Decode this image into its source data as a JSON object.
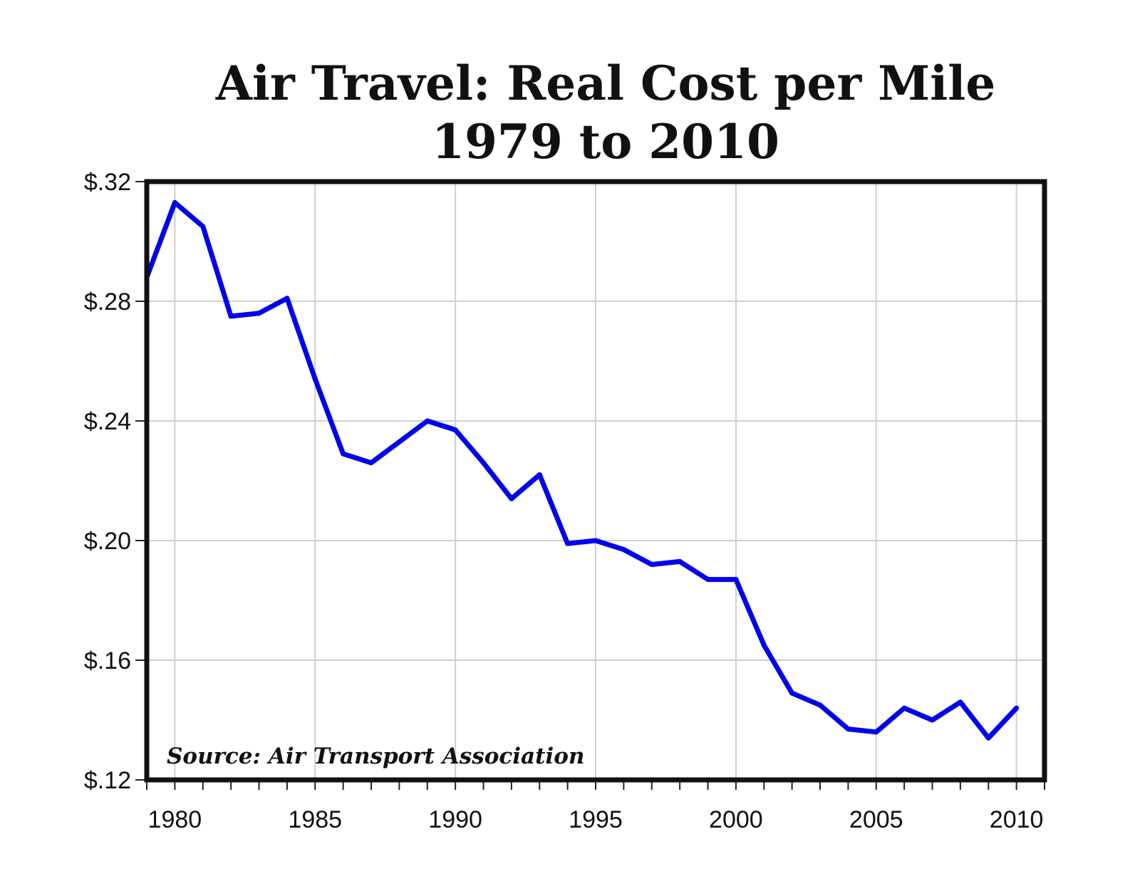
{
  "chart_data": {
    "type": "line",
    "title": "Air Travel: Real Cost per Mile",
    "subtitle": "1979 to 2010",
    "xlabel": "",
    "ylabel": "",
    "xlim": [
      1979,
      2011
    ],
    "ylim": [
      0.12,
      0.32
    ],
    "grid": true,
    "legend": "none",
    "annotation": "Source: Air Transport Association",
    "line_color": "#0000ee",
    "y_ticks": [
      {
        "value": 0.32,
        "label": "$.32"
      },
      {
        "value": 0.28,
        "label": "$.28"
      },
      {
        "value": 0.24,
        "label": "$.24"
      },
      {
        "value": 0.2,
        "label": "$.20"
      },
      {
        "value": 0.16,
        "label": "$.16"
      },
      {
        "value": 0.12,
        "label": "$.12"
      }
    ],
    "x_ticks": [
      {
        "value": 1980,
        "label": "1980"
      },
      {
        "value": 1985,
        "label": "1985"
      },
      {
        "value": 1990,
        "label": "1990"
      },
      {
        "value": 1995,
        "label": "1995"
      },
      {
        "value": 2000,
        "label": "2000"
      },
      {
        "value": 2005,
        "label": "2005"
      },
      {
        "value": 2010,
        "label": "2010"
      }
    ],
    "series": [
      {
        "x": [
          1979,
          1980,
          1981,
          1982,
          1983,
          1984,
          1985,
          1986,
          1987,
          1988,
          1989,
          1990,
          1991,
          1992,
          1993,
          1994,
          1995,
          1996,
          1997,
          1998,
          1999,
          2000,
          2001,
          2002,
          2003,
          2004,
          2005,
          2006,
          2007,
          2008,
          2009,
          2010
        ],
        "values": [
          0.288,
          0.313,
          0.305,
          0.275,
          0.276,
          0.281,
          0.254,
          0.229,
          0.226,
          0.233,
          0.24,
          0.237,
          0.226,
          0.214,
          0.222,
          0.199,
          0.2,
          0.197,
          0.192,
          0.193,
          0.187,
          0.187,
          0.165,
          0.149,
          0.145,
          0.137,
          0.136,
          0.144,
          0.14,
          0.146,
          0.134,
          0.144
        ]
      }
    ]
  }
}
